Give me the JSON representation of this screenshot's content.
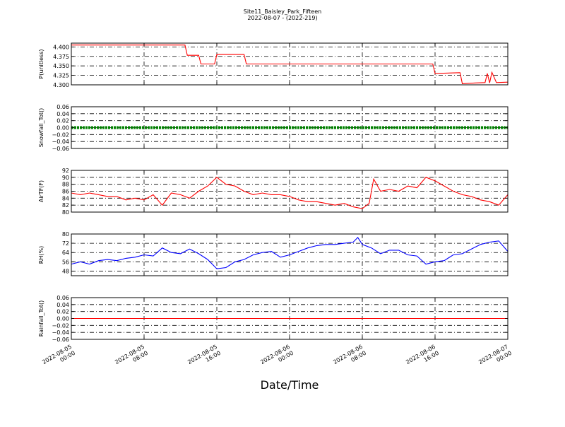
{
  "chart_data": {
    "type": "line",
    "title": "Site11_Baisley_Park_Fifteen",
    "subtitle": "2022-08-07 - (2022-219)",
    "xlabel": "Date/Time",
    "x_ticks": [
      {
        "value": "2022-08-05 00:00",
        "line1": "2022-08-05",
        "line2": "00:00"
      },
      {
        "value": "2022-08-05 08:00",
        "line1": "2022-08-05",
        "line2": "08:00"
      },
      {
        "value": "2022-08-05 16:00",
        "line1": "2022-08-05",
        "line2": "16:00"
      },
      {
        "value": "2022-08-06 00:00",
        "line1": "2022-08-06",
        "line2": "00:00"
      },
      {
        "value": "2022-08-06 08:00",
        "line1": "2022-08-06",
        "line2": "08:00"
      },
      {
        "value": "2022-08-06 16:00",
        "line1": "2022-08-06",
        "line2": "16:00"
      },
      {
        "value": "2022-08-07 00:00",
        "line1": "2022-08-07",
        "line2": "00:00"
      }
    ],
    "xlim": [
      "2022-08-05 00:00",
      "2022-08-07 00:00"
    ],
    "grid": true,
    "panels": [
      {
        "id": "p",
        "ylabel": "P(unitless)",
        "ylim": [
          4.3,
          4.41
        ],
        "yticks": [
          "4.300",
          "4.325",
          "4.350",
          "4.375",
          "4.400"
        ],
        "color": "#ff0000",
        "style": "line",
        "series": [
          {
            "x": "2022-08-05 00:00",
            "y": 4.405
          },
          {
            "x": "2022-08-05 12:30",
            "y": 4.405
          },
          {
            "x": "2022-08-05 12:45",
            "y": 4.378
          },
          {
            "x": "2022-08-05 14:00",
            "y": 4.378
          },
          {
            "x": "2022-08-05 14:15",
            "y": 4.355
          },
          {
            "x": "2022-08-05 15:45",
            "y": 4.355
          },
          {
            "x": "2022-08-05 16:00",
            "y": 4.38
          },
          {
            "x": "2022-08-05 19:00",
            "y": 4.38
          },
          {
            "x": "2022-08-05 19:15",
            "y": 4.355
          },
          {
            "x": "2022-08-06 15:45",
            "y": 4.355
          },
          {
            "x": "2022-08-06 16:00",
            "y": 4.33
          },
          {
            "x": "2022-08-06 18:45",
            "y": 4.332
          },
          {
            "x": "2022-08-06 19:00",
            "y": 4.303
          },
          {
            "x": "2022-08-06 20:30",
            "y": 4.305
          },
          {
            "x": "2022-08-06 21:30",
            "y": 4.306
          },
          {
            "x": "2022-08-06 21:45",
            "y": 4.33
          },
          {
            "x": "2022-08-06 22:00",
            "y": 4.305
          },
          {
            "x": "2022-08-06 22:15",
            "y": 4.333
          },
          {
            "x": "2022-08-06 22:45",
            "y": 4.306
          },
          {
            "x": "2022-08-07 00:00",
            "y": 4.307
          }
        ]
      },
      {
        "id": "snow",
        "ylabel": "Snowfall_Tot()",
        "ylim": [
          -0.06,
          0.06
        ],
        "yticks": [
          "−0.06",
          "−0.04",
          "−0.02",
          "0.00",
          "0.02",
          "0.04",
          "0.06"
        ],
        "color": "#008000",
        "style": "thick",
        "series": [
          {
            "x": "2022-08-05 00:00",
            "y": 0.0
          },
          {
            "x": "2022-08-07 00:00",
            "y": 0.0
          }
        ]
      },
      {
        "id": "airt",
        "ylabel": "AirTF(F)",
        "ylim": [
          80,
          92
        ],
        "yticks": [
          "80",
          "82",
          "84",
          "86",
          "88",
          "90",
          "92"
        ],
        "color": "#ff0000",
        "style": "line",
        "series": [
          {
            "x": "2022-08-05 00:00",
            "y": 85.5
          },
          {
            "x": "2022-08-05 01:00",
            "y": 85.0
          },
          {
            "x": "2022-08-05 02:00",
            "y": 85.5
          },
          {
            "x": "2022-08-05 03:00",
            "y": 85.0
          },
          {
            "x": "2022-08-05 04:00",
            "y": 84.5
          },
          {
            "x": "2022-08-05 05:00",
            "y": 84.5
          },
          {
            "x": "2022-08-05 06:00",
            "y": 83.5
          },
          {
            "x": "2022-08-05 07:00",
            "y": 84.0
          },
          {
            "x": "2022-08-05 08:00",
            "y": 83.5
          },
          {
            "x": "2022-08-05 09:00",
            "y": 85.0
          },
          {
            "x": "2022-08-05 10:00",
            "y": 82.0
          },
          {
            "x": "2022-08-05 11:00",
            "y": 85.5
          },
          {
            "x": "2022-08-05 12:00",
            "y": 85.0
          },
          {
            "x": "2022-08-05 13:00",
            "y": 84.0
          },
          {
            "x": "2022-08-05 14:00",
            "y": 86.0
          },
          {
            "x": "2022-08-05 15:00",
            "y": 87.5
          },
          {
            "x": "2022-08-05 16:00",
            "y": 90.0
          },
          {
            "x": "2022-08-05 17:00",
            "y": 88.0
          },
          {
            "x": "2022-08-05 18:00",
            "y": 87.5
          },
          {
            "x": "2022-08-05 19:00",
            "y": 86.0
          },
          {
            "x": "2022-08-05 20:00",
            "y": 85.0
          },
          {
            "x": "2022-08-05 21:00",
            "y": 85.5
          },
          {
            "x": "2022-08-05 22:00",
            "y": 85.0
          },
          {
            "x": "2022-08-05 23:00",
            "y": 85.0
          },
          {
            "x": "2022-08-06 00:00",
            "y": 84.5
          },
          {
            "x": "2022-08-06 01:00",
            "y": 83.5
          },
          {
            "x": "2022-08-06 02:00",
            "y": 83.0
          },
          {
            "x": "2022-08-06 03:00",
            "y": 83.0
          },
          {
            "x": "2022-08-06 04:00",
            "y": 82.5
          },
          {
            "x": "2022-08-06 05:00",
            "y": 82.0
          },
          {
            "x": "2022-08-06 06:00",
            "y": 82.5
          },
          {
            "x": "2022-08-06 07:00",
            "y": 81.5
          },
          {
            "x": "2022-08-06 08:00",
            "y": 81.0
          },
          {
            "x": "2022-08-06 08:45",
            "y": 82.5
          },
          {
            "x": "2022-08-06 09:15",
            "y": 89.5
          },
          {
            "x": "2022-08-06 10:00",
            "y": 86.0
          },
          {
            "x": "2022-08-06 11:00",
            "y": 86.5
          },
          {
            "x": "2022-08-06 12:00",
            "y": 86.0
          },
          {
            "x": "2022-08-06 13:00",
            "y": 87.5
          },
          {
            "x": "2022-08-06 14:00",
            "y": 87.0
          },
          {
            "x": "2022-08-06 15:00",
            "y": 90.0
          },
          {
            "x": "2022-08-06 16:00",
            "y": 89.0
          },
          {
            "x": "2022-08-06 17:00",
            "y": 87.5
          },
          {
            "x": "2022-08-06 18:00",
            "y": 86.0
          },
          {
            "x": "2022-08-06 19:00",
            "y": 85.0
          },
          {
            "x": "2022-08-06 20:00",
            "y": 84.5
          },
          {
            "x": "2022-08-06 21:00",
            "y": 83.5
          },
          {
            "x": "2022-08-06 22:00",
            "y": 83.0
          },
          {
            "x": "2022-08-06 23:00",
            "y": 82.0
          },
          {
            "x": "2022-08-07 00:00",
            "y": 85.0
          }
        ]
      },
      {
        "id": "rh",
        "ylabel": "RH(%)",
        "ylim": [
          44,
          80
        ],
        "yticks": [
          "48",
          "56",
          "64",
          "72",
          "80"
        ],
        "color": "#0000ff",
        "style": "line",
        "series": [
          {
            "x": "2022-08-05 00:00",
            "y": 54
          },
          {
            "x": "2022-08-05 01:00",
            "y": 56
          },
          {
            "x": "2022-08-05 02:00",
            "y": 54
          },
          {
            "x": "2022-08-05 03:00",
            "y": 57
          },
          {
            "x": "2022-08-05 04:00",
            "y": 58
          },
          {
            "x": "2022-08-05 05:00",
            "y": 57
          },
          {
            "x": "2022-08-05 06:00",
            "y": 59
          },
          {
            "x": "2022-08-05 07:00",
            "y": 60
          },
          {
            "x": "2022-08-05 08:00",
            "y": 62
          },
          {
            "x": "2022-08-05 09:00",
            "y": 61
          },
          {
            "x": "2022-08-05 10:00",
            "y": 68
          },
          {
            "x": "2022-08-05 11:00",
            "y": 64
          },
          {
            "x": "2022-08-05 12:00",
            "y": 63
          },
          {
            "x": "2022-08-05 13:00",
            "y": 67
          },
          {
            "x": "2022-08-05 14:00",
            "y": 63
          },
          {
            "x": "2022-08-05 15:00",
            "y": 58
          },
          {
            "x": "2022-08-05 16:00",
            "y": 50
          },
          {
            "x": "2022-08-05 17:00",
            "y": 51
          },
          {
            "x": "2022-08-05 18:00",
            "y": 56
          },
          {
            "x": "2022-08-05 19:00",
            "y": 58
          },
          {
            "x": "2022-08-05 20:00",
            "y": 62
          },
          {
            "x": "2022-08-05 21:00",
            "y": 64
          },
          {
            "x": "2022-08-05 22:00",
            "y": 65
          },
          {
            "x": "2022-08-05 23:00",
            "y": 60
          },
          {
            "x": "2022-08-06 00:00",
            "y": 62
          },
          {
            "x": "2022-08-06 01:00",
            "y": 65
          },
          {
            "x": "2022-08-06 02:00",
            "y": 68
          },
          {
            "x": "2022-08-06 03:00",
            "y": 70
          },
          {
            "x": "2022-08-06 04:00",
            "y": 71
          },
          {
            "x": "2022-08-06 05:00",
            "y": 71
          },
          {
            "x": "2022-08-06 06:00",
            "y": 72
          },
          {
            "x": "2022-08-06 07:00",
            "y": 73
          },
          {
            "x": "2022-08-06 07:30",
            "y": 77
          },
          {
            "x": "2022-08-06 08:00",
            "y": 71
          },
          {
            "x": "2022-08-06 09:00",
            "y": 68
          },
          {
            "x": "2022-08-06 10:00",
            "y": 63
          },
          {
            "x": "2022-08-06 11:00",
            "y": 66
          },
          {
            "x": "2022-08-06 12:00",
            "y": 66
          },
          {
            "x": "2022-08-06 13:00",
            "y": 62
          },
          {
            "x": "2022-08-06 14:00",
            "y": 61
          },
          {
            "x": "2022-08-06 15:00",
            "y": 54
          },
          {
            "x": "2022-08-06 16:00",
            "y": 56
          },
          {
            "x": "2022-08-06 17:00",
            "y": 57
          },
          {
            "x": "2022-08-06 18:00",
            "y": 62
          },
          {
            "x": "2022-08-06 19:00",
            "y": 63
          },
          {
            "x": "2022-08-06 20:00",
            "y": 67
          },
          {
            "x": "2022-08-06 21:00",
            "y": 71
          },
          {
            "x": "2022-08-06 22:00",
            "y": 73
          },
          {
            "x": "2022-08-06 23:00",
            "y": 74
          },
          {
            "x": "2022-08-07 00:00",
            "y": 65
          }
        ]
      },
      {
        "id": "rain",
        "ylabel": "Rainfall_Tot()",
        "ylim": [
          -0.06,
          0.06
        ],
        "yticks": [
          "−0.06",
          "−0.04",
          "−0.02",
          "0.00",
          "0.02",
          "0.04",
          "0.06"
        ],
        "color": "#ff0000",
        "style": "line",
        "series": [
          {
            "x": "2022-08-05 00:00",
            "y": 0.0
          },
          {
            "x": "2022-08-07 00:00",
            "y": 0.0
          }
        ]
      }
    ]
  }
}
